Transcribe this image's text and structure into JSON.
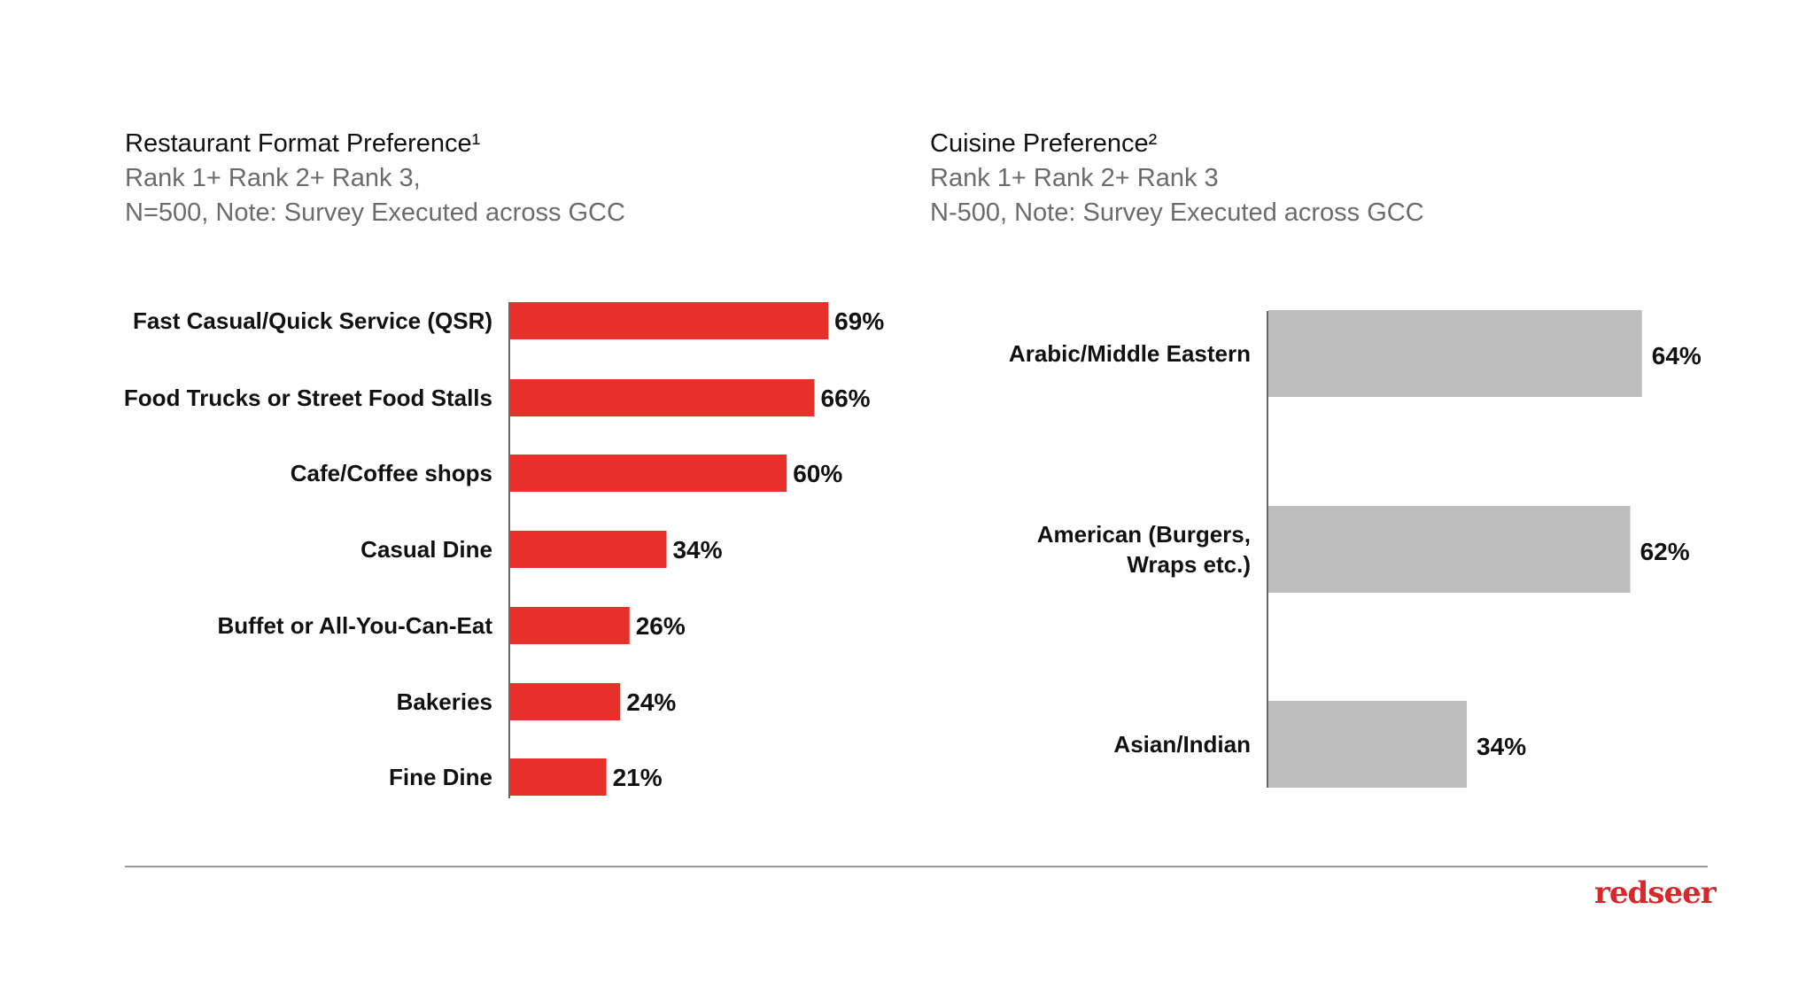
{
  "chart_data": [
    {
      "type": "bar",
      "orientation": "horizontal",
      "title": "Restaurant Format Preference¹",
      "subtitle": [
        "Rank 1+ Rank 2+ Rank 3,",
        "N=500, Note: Survey Executed across GCC"
      ],
      "categories": [
        "Fast Casual/Quick Service (QSR)",
        "Food Trucks or Street Food Stalls",
        "Cafe/Coffee shops",
        "Casual Dine",
        "Buffet or All-You-Can-Eat",
        "Bakeries",
        "Fine Dine"
      ],
      "values": [
        69,
        66,
        60,
        34,
        26,
        24,
        21
      ],
      "data_labels": [
        "69%",
        "66%",
        "60%",
        "34%",
        "26%",
        "24%",
        "21%"
      ],
      "unit": "%",
      "color": "#e8302b",
      "grid": false
    },
    {
      "type": "bar",
      "orientation": "horizontal",
      "title": "Cuisine Preference²",
      "subtitle": [
        "Rank 1+ Rank 2+ Rank 3",
        "N-500, Note: Survey Executed across GCC"
      ],
      "categories": [
        [
          "Arabic/Middle Eastern"
        ],
        [
          "American (Burgers,",
          "Wraps etc.)"
        ],
        [
          "Asian/Indian"
        ]
      ],
      "values": [
        64,
        62,
        34
      ],
      "data_labels": [
        "64%",
        "62%",
        "34%"
      ],
      "unit": "%",
      "color": "#bdbdbd",
      "grid": false
    }
  ],
  "logo": {
    "text": "redseer",
    "color": "#d8282b"
  }
}
